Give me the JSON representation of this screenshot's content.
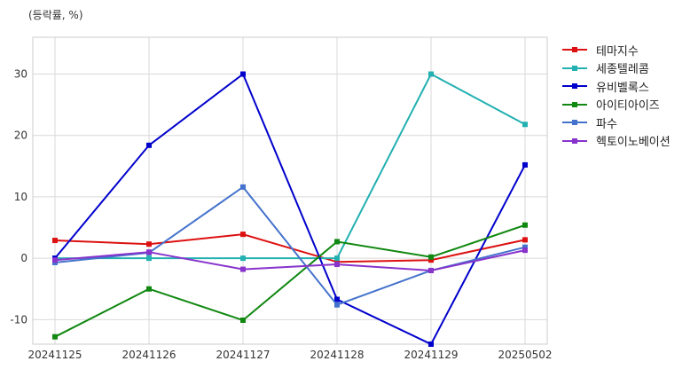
{
  "chart_data": {
    "type": "line",
    "title": "",
    "unit_label": "(등락률, %)",
    "xlabel": "",
    "ylabel": "",
    "categories": [
      "20241125",
      "20241126",
      "20241127",
      "20241128",
      "20241129",
      "20250502"
    ],
    "ylim": [
      -14,
      36
    ],
    "yticks": [
      -10,
      0,
      10,
      20,
      30
    ],
    "grid": true,
    "legend_position": "right",
    "series": [
      {
        "name": "테마지수",
        "color": "#dd1111",
        "values": [
          2.9,
          2.3,
          3.9,
          -0.6,
          -0.3,
          3.0
        ]
      },
      {
        "name": "세종텔레콤",
        "color": "#22b0b0",
        "values": [
          0.0,
          0.0,
          0.0,
          0.0,
          30.0,
          21.8
        ]
      },
      {
        "name": "유비벨록스",
        "color": "#0000cc",
        "values": [
          0.0,
          18.4,
          30.0,
          -6.7,
          -14.0,
          15.2
        ]
      },
      {
        "name": "아이티아이즈",
        "color": "#118811",
        "values": [
          -12.8,
          -5.0,
          -10.1,
          2.7,
          0.2,
          5.4
        ]
      },
      {
        "name": "파수",
        "color": "#4472cc",
        "values": [
          -0.7,
          0.9,
          11.6,
          -7.6,
          -2.0,
          1.8
        ]
      },
      {
        "name": "헥토이노베이션",
        "color": "#8833cc",
        "values": [
          -0.3,
          1.0,
          -1.8,
          -1.0,
          -2.0,
          1.3
        ]
      }
    ]
  }
}
